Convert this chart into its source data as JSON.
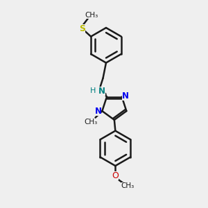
{
  "bg_color": "#efefef",
  "bond_color": "#1a1a1a",
  "N_color": "#0000ee",
  "N_color2": "#008080",
  "O_color": "#cc0000",
  "S_color": "#bbbb00",
  "bond_width": 1.8,
  "fig_size": [
    3.0,
    3.0
  ],
  "dpi": 100,
  "xlim": [
    0,
    10
  ],
  "ylim": [
    0,
    10
  ]
}
